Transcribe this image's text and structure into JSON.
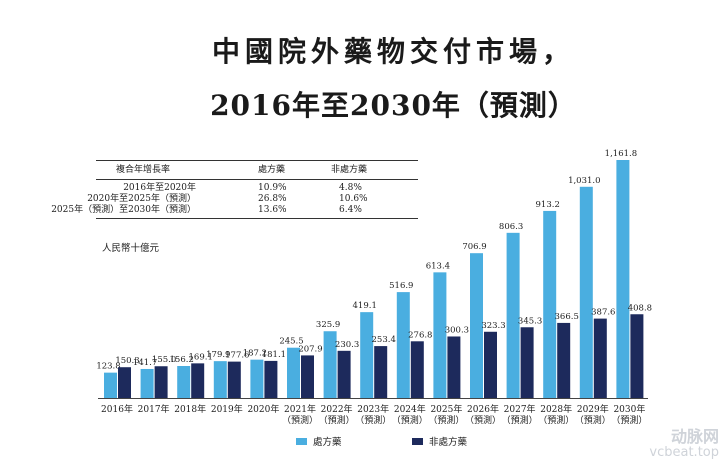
{
  "title_line1": "中國院外藥物交付市場，",
  "title_line2": "2016年至2030年（預測）",
  "cagr_table": {
    "headers": [
      "複合年增長率",
      "處方藥",
      "非處方藥"
    ],
    "rows": [
      [
        "2016年至2020年",
        "10.9%",
        "4.8%"
      ],
      [
        "2020年至2025年（預測）",
        "26.8%",
        "10.6%"
      ],
      [
        "2025年（預測）至2030年（預測）",
        "13.6%",
        "6.4%"
      ]
    ]
  },
  "unit_label": "人民幣十億元",
  "legend": {
    "rx_label": "處方藥",
    "otc_label": "非處方藥"
  },
  "colors": {
    "rx": "#4aaee0",
    "otc": "#1d2a5c"
  },
  "watermark": {
    "brand": "动脉网",
    "url": "vcbeat.top"
  },
  "chart_data": {
    "type": "bar",
    "categories": [
      "2016年",
      "2017年",
      "2018年",
      "2019年",
      "2020年",
      "2021年\n（預測）",
      "2022年\n（預測）",
      "2023年\n（預測）",
      "2024年\n（預測）",
      "2025年\n（預測）",
      "2026年\n（預測）",
      "2027年\n（預測）",
      "2028年\n（預測）",
      "2029年\n（預測）",
      "2030年\n（預測）"
    ],
    "series": [
      {
        "name": "處方藥",
        "values": [
          123.8,
          141.7,
          156.2,
          179.9,
          187.2,
          245.5,
          325.9,
          419.1,
          516.9,
          613.4,
          706.9,
          806.3,
          913.2,
          1031.0,
          1161.8
        ],
        "labels": [
          "123.8",
          "141.7",
          "156.2",
          "179.9",
          "187.2",
          "245.5",
          "325.9",
          "419.1",
          "516.9",
          "613.4",
          "706.9",
          "806.3",
          "913.2",
          "1,031.0",
          "1,161.8"
        ]
      },
      {
        "name": "非處方藥",
        "values": [
          150.3,
          155.0,
          169.1,
          177.6,
          181.1,
          207.9,
          230.3,
          253.4,
          276.8,
          300.3,
          323.3,
          345.3,
          366.5,
          387.6,
          408.8
        ],
        "labels": [
          "150.3",
          "155.0",
          "169.1",
          "177.6",
          "181.1",
          "207.9",
          "230.3",
          "253.4",
          "276.8",
          "300.3",
          "323.3",
          "345.3",
          "366.5",
          "387.6",
          "408.8"
        ]
      }
    ],
    "ylim": [
      0,
      1161.8
    ],
    "grid": false,
    "legend_position": "bottom"
  }
}
